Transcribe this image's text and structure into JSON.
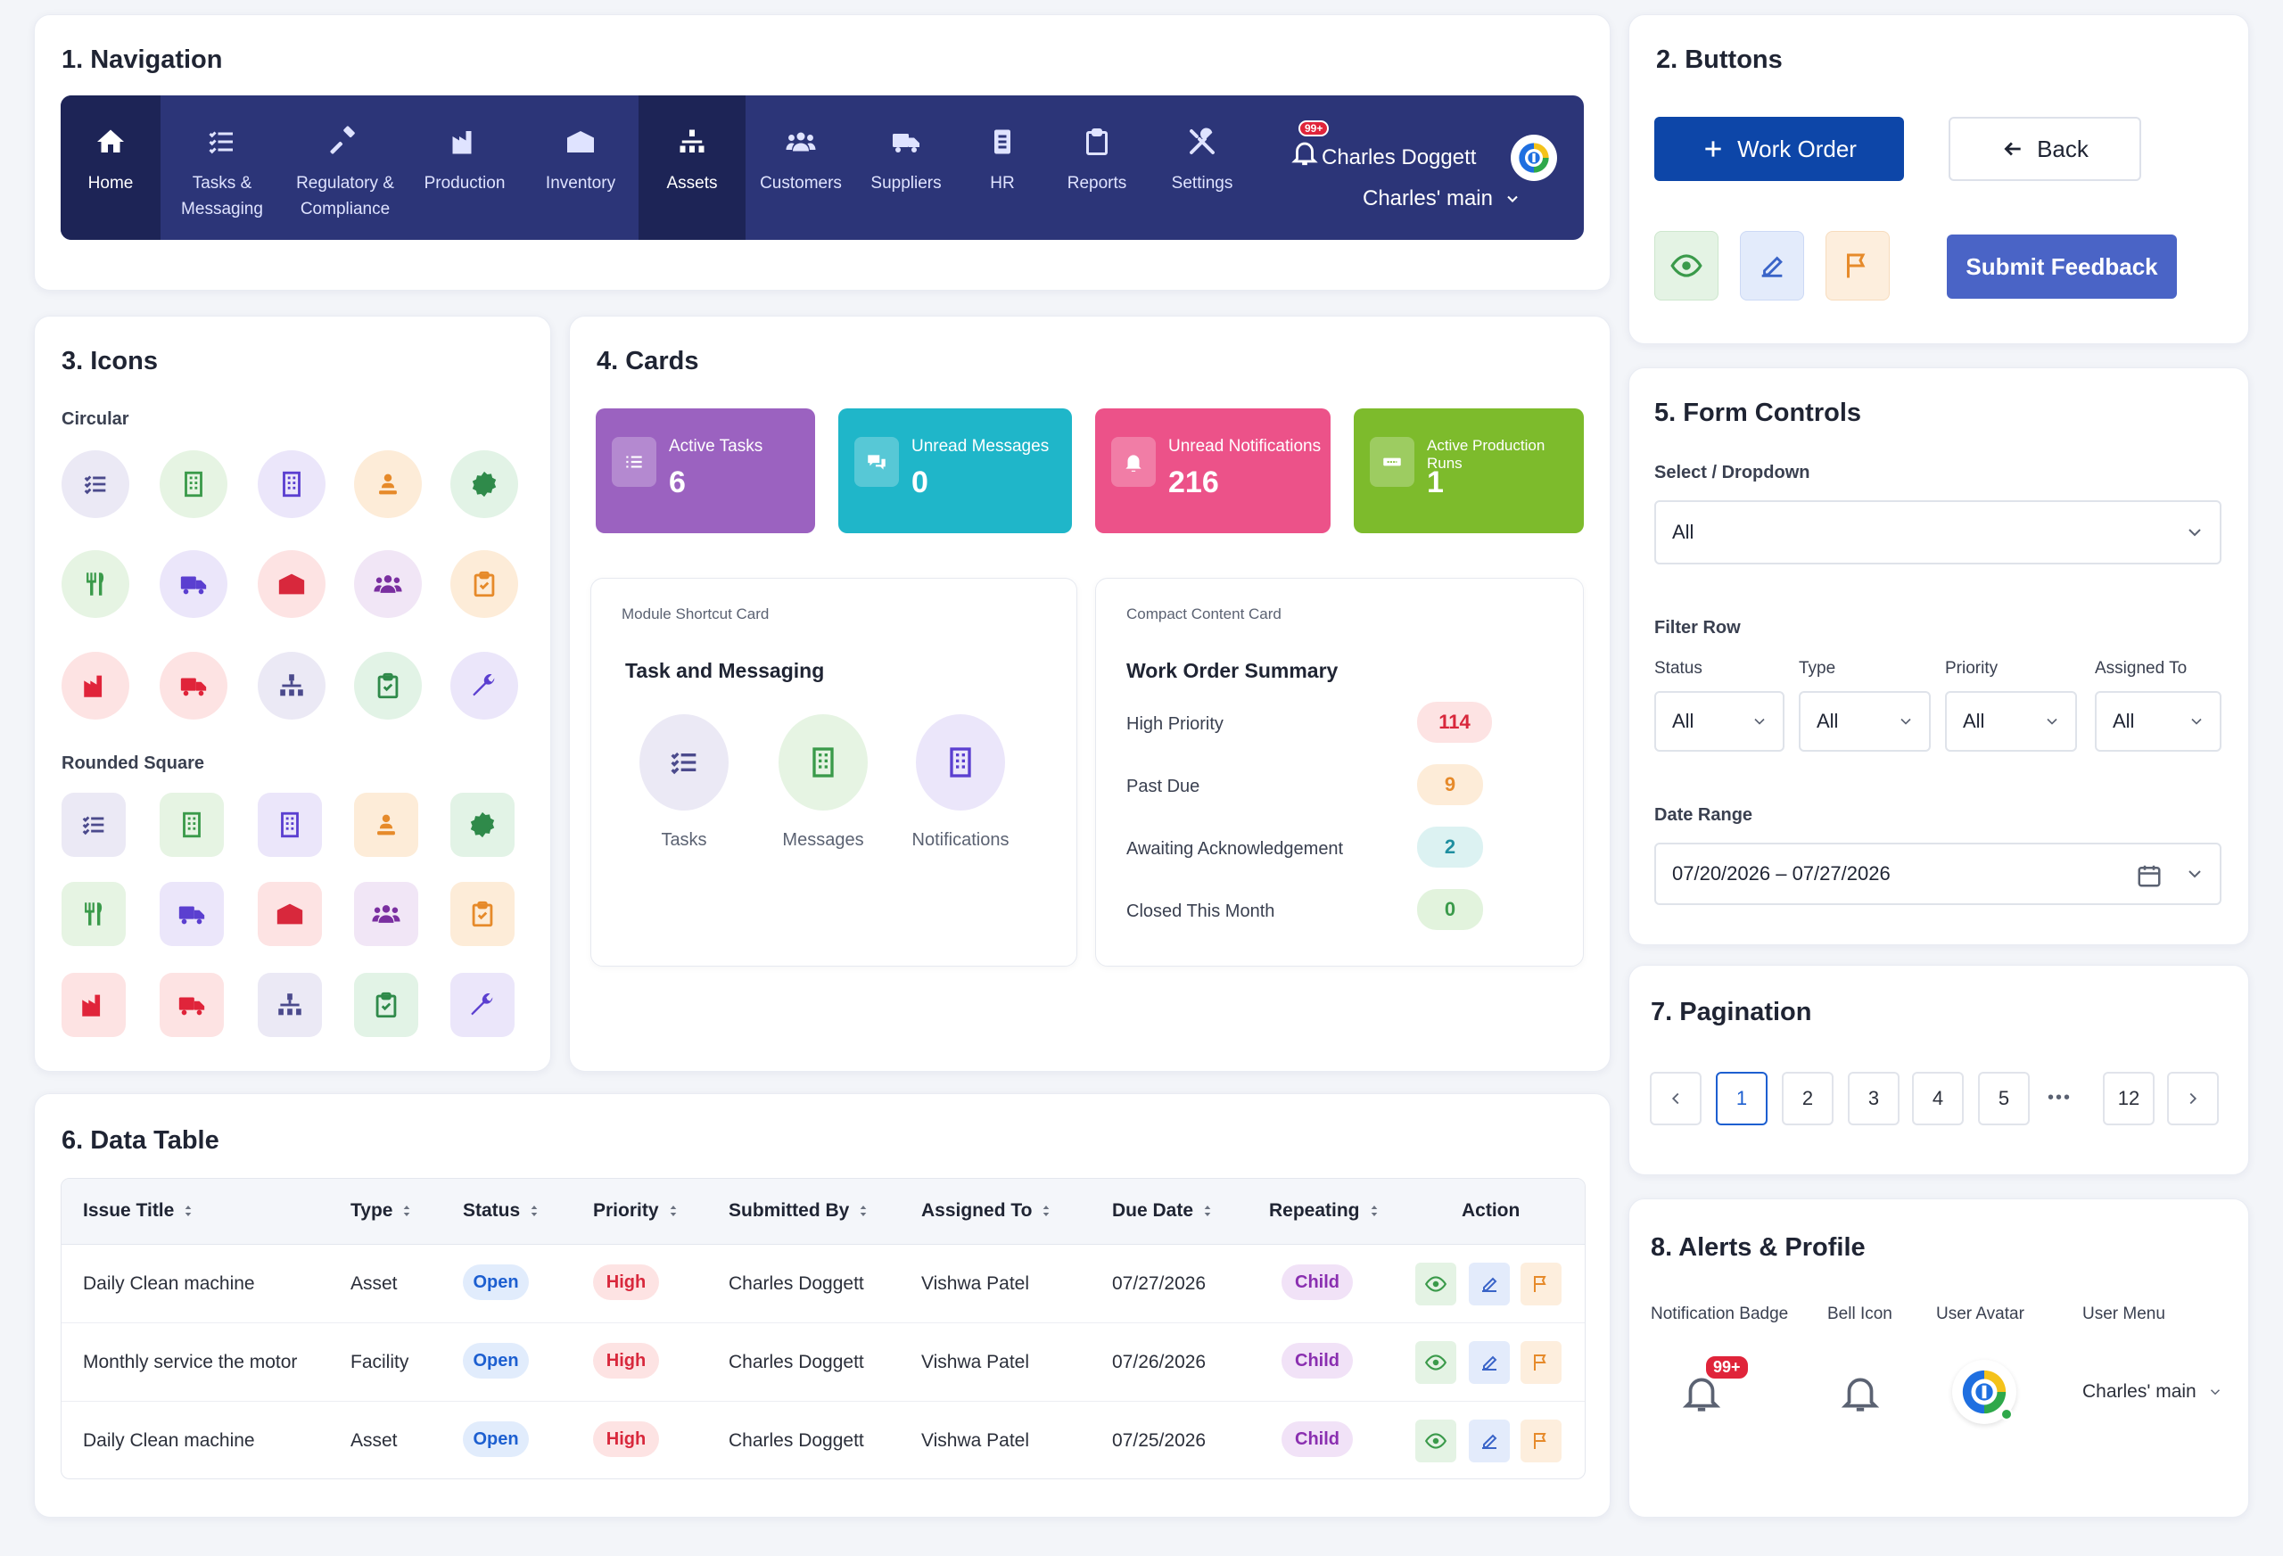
{
  "navigation": {
    "title": "1. Navigation",
    "items": [
      {
        "label": "Home",
        "icon": "home-icon"
      },
      {
        "label": "Tasks &\nMessaging",
        "icon": "list-icon"
      },
      {
        "label": "Regulatory &\nCompliance",
        "icon": "gavel-icon"
      },
      {
        "label": "Production",
        "icon": "factory-icon"
      },
      {
        "label": "Inventory",
        "icon": "warehouse-icon"
      },
      {
        "label": "Assets",
        "icon": "hierarchy-icon"
      },
      {
        "label": "Customers",
        "icon": "users-icon"
      },
      {
        "label": "Suppliers",
        "icon": "truck-icon"
      },
      {
        "label": "HR",
        "icon": "id-badge-icon"
      },
      {
        "label": "Reports",
        "icon": "clipboard-icon"
      },
      {
        "label": "Settings",
        "icon": "tools-icon"
      }
    ],
    "user_name": "Charles Doggett",
    "badge": "99+",
    "location": "Charles' main"
  },
  "buttons": {
    "title": "2. Buttons",
    "work_order": "Work Order",
    "back": "Back",
    "submit_feedback": "Submit Feedback"
  },
  "icons": {
    "title": "3. Icons",
    "circular_label": "Circular",
    "rounded_label": "Rounded Square"
  },
  "cards": {
    "title": "4. Cards",
    "stats": [
      {
        "label": "Active Tasks",
        "value": "6"
      },
      {
        "label": "Unread Messages",
        "value": "0"
      },
      {
        "label": "Unread Notifications",
        "value": "216"
      },
      {
        "label": "Active Production Runs",
        "value": "1"
      }
    ],
    "module": {
      "caption": "Module Shortcut Card",
      "heading": "Task and Messaging",
      "items": [
        "Tasks",
        "Messages",
        "Notifications"
      ]
    },
    "compact": {
      "caption": "Compact Content Card",
      "heading": "Work Order Summary",
      "rows": [
        {
          "label": "High Priority",
          "value": "114"
        },
        {
          "label": "Past Due",
          "value": "9"
        },
        {
          "label": "Awaiting Acknowledgement",
          "value": "2"
        },
        {
          "label": "Closed This Month",
          "value": "0"
        }
      ]
    }
  },
  "form": {
    "title": "5. Form Controls",
    "select_label": "Select / Dropdown",
    "select_value": "All",
    "filter_label": "Filter Row",
    "filters": [
      {
        "label": "Status",
        "value": "All"
      },
      {
        "label": "Type",
        "value": "All"
      },
      {
        "label": "Priority",
        "value": "All"
      },
      {
        "label": "Assigned To",
        "value": "All"
      }
    ],
    "date_label": "Date Range",
    "date_value": "07/20/2026 – 07/27/2026"
  },
  "table": {
    "title": "6. Data Table",
    "headers": [
      "Issue Title",
      "Type",
      "Status",
      "Priority",
      "Submitted By",
      "Assigned To",
      "Due Date",
      "Repeating",
      "Action"
    ],
    "rows": [
      {
        "title": "Daily Clean machine",
        "type": "Asset",
        "status": "Open",
        "priority": "High",
        "submitted": "Charles Doggett",
        "assigned": "Vishwa Patel",
        "due": "07/27/2026",
        "repeating": "Child"
      },
      {
        "title": "Monthly service the motor",
        "type": "Facility",
        "status": "Open",
        "priority": "High",
        "submitted": "Charles Doggett",
        "assigned": "Vishwa Patel",
        "due": "07/26/2026",
        "repeating": "Child"
      },
      {
        "title": "Daily Clean machine",
        "type": "Asset",
        "status": "Open",
        "priority": "High",
        "submitted": "Charles Doggett",
        "assigned": "Vishwa Patel",
        "due": "07/25/2026",
        "repeating": "Child"
      }
    ]
  },
  "pagination": {
    "title": "7. Pagination",
    "pages": [
      "1",
      "2",
      "3",
      "4",
      "5"
    ],
    "ellipsis": "•••",
    "last": "12",
    "current": "1"
  },
  "alerts": {
    "title": "8. Alerts & Profile",
    "labels": [
      "Notification Badge",
      "Bell Icon",
      "User Avatar",
      "User Menu"
    ],
    "badge": "99+",
    "user_menu": "Charles' main"
  },
  "colors": {
    "nav_bg": "#2c3578",
    "primary": "#0d46a8",
    "feedback": "#4a64c6",
    "stat_purple": "#9b62c0",
    "stat_teal": "#1fb6c9",
    "stat_pink": "#ec5289",
    "stat_green": "#7dbb2c"
  }
}
